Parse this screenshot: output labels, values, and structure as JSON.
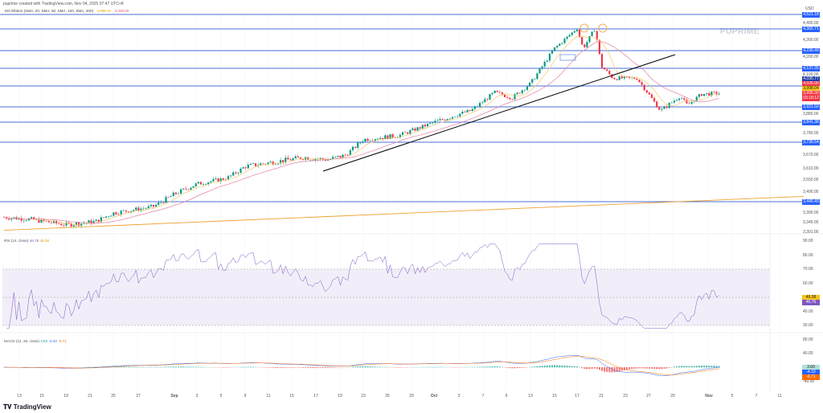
{
  "header": {
    "credit": "puprime created with TradingView.com, Nov 04, 2025 07:47 UTC+8",
    "indicator": "MA Ribbon (SMA, 20, SMA, 50, SMA, 100, SMA, 200)",
    "ma_val1": "3,998.04",
    "ma_val2": "4,026.00"
  },
  "currency": "USD",
  "logo": "PUPRIME",
  "footer": "TradingView",
  "rsi": {
    "label": "RSI (14, close)",
    "v1": "46.76",
    "v2": "49.38"
  },
  "macd": {
    "label": "MACD (12, 26, close)",
    "v1": "3.60",
    "v2": "-4.10",
    "v3": "-6.71"
  },
  "price_axis": [
    "4,400.00",
    "4,300.00",
    "4,200.00",
    "4,100.00",
    "3,880.00",
    "3,780.00",
    "3,670.00",
    "3,610.00",
    "3,550.00",
    "3,490.00",
    "3,390.00",
    "3,345.00",
    "3,301.00"
  ],
  "levels": [
    "4,521.18",
    "4,365.71",
    "4,236.49",
    "4,137.35",
    "4,035.77",
    "3,921.50",
    "3,841.38",
    "3,736.54",
    "3,445.49"
  ],
  "price_tags": {
    "ma100": "4,026.00",
    "ma20": "3,998.04",
    "last": "3,995.30",
    "countdown": "03:18:12"
  },
  "rsi_axis": [
    "90.00",
    "80.00",
    "70.00",
    "60.00",
    "40.00",
    "30.00"
  ],
  "macd_axis": [
    "80.00",
    "40.00",
    "-40.00"
  ],
  "colors": {
    "up": "#089981",
    "down": "#f23645",
    "level": "#2962ff",
    "ma20": "#f5c96b",
    "ma50": "#e57ea0",
    "ma200": "#f0a030",
    "rsi": "#7e57c2",
    "trend": "#000000"
  },
  "chart_data": {
    "type": "candlestick",
    "x_ticks": [
      {
        "label": "13",
        "date": "2025-08-13"
      },
      {
        "label": "15",
        "date": "2025-08-15"
      },
      {
        "label": "19",
        "date": "2025-08-19"
      },
      {
        "label": "21",
        "date": "2025-08-21"
      },
      {
        "label": "25",
        "date": "2025-08-25"
      },
      {
        "label": "27",
        "date": "2025-08-27"
      },
      {
        "label": "Sep",
        "date": "2025-09-01"
      },
      {
        "label": "3",
        "date": "2025-09-03"
      },
      {
        "label": "5",
        "date": "2025-09-05"
      },
      {
        "label": "9",
        "date": "2025-09-09"
      },
      {
        "label": "11",
        "date": "2025-09-11"
      },
      {
        "label": "15",
        "date": "2025-09-15"
      },
      {
        "label": "17",
        "date": "2025-09-17"
      },
      {
        "label": "19",
        "date": "2025-09-19"
      },
      {
        "label": "23",
        "date": "2025-09-23"
      },
      {
        "label": "25",
        "date": "2025-09-25"
      },
      {
        "label": "29",
        "date": "2025-09-29"
      },
      {
        "label": "Oct",
        "date": "2025-10-01"
      },
      {
        "label": "3",
        "date": "2025-10-03"
      },
      {
        "label": "7",
        "date": "2025-10-07"
      },
      {
        "label": "9",
        "date": "2025-10-09"
      },
      {
        "label": "13",
        "date": "2025-10-13"
      },
      {
        "label": "15",
        "date": "2025-10-15"
      },
      {
        "label": "17",
        "date": "2025-10-17"
      },
      {
        "label": "21",
        "date": "2025-10-21"
      },
      {
        "label": "23",
        "date": "2025-10-23"
      },
      {
        "label": "27",
        "date": "2025-10-27"
      },
      {
        "label": "29",
        "date": "2025-10-29"
      },
      {
        "label": "Nov",
        "date": "2025-11-03"
      },
      {
        "label": "5",
        "date": "2025-11-05"
      },
      {
        "label": "7",
        "date": "2025-11-07"
      },
      {
        "label": "11",
        "date": "2025-11-11"
      }
    ],
    "close_path": [
      [
        "2025-08-11",
        3370
      ],
      [
        "2025-08-14",
        3360
      ],
      [
        "2025-08-19",
        3335
      ],
      [
        "2025-08-22",
        3350
      ],
      [
        "2025-08-25",
        3390
      ],
      [
        "2025-08-29",
        3420
      ],
      [
        "2025-09-01",
        3480
      ],
      [
        "2025-09-03",
        3530
      ],
      [
        "2025-09-06",
        3560
      ],
      [
        "2025-09-09",
        3620
      ],
      [
        "2025-09-12",
        3640
      ],
      [
        "2025-09-16",
        3660
      ],
      [
        "2025-09-18",
        3650
      ],
      [
        "2025-09-20",
        3670
      ],
      [
        "2025-09-23",
        3750
      ],
      [
        "2025-09-27",
        3770
      ],
      [
        "2025-10-01",
        3840
      ],
      [
        "2025-10-05",
        3900
      ],
      [
        "2025-10-08",
        4000
      ],
      [
        "2025-10-10",
        3970
      ],
      [
        "2025-10-13",
        4050
      ],
      [
        "2025-10-15",
        4250
      ],
      [
        "2025-10-17",
        4370
      ],
      [
        "2025-10-18",
        4250
      ],
      [
        "2025-10-20",
        4370
      ],
      [
        "2025-10-21",
        4150
      ],
      [
        "2025-10-22",
        4080
      ],
      [
        "2025-10-25",
        4080
      ],
      [
        "2025-10-27",
        3990
      ],
      [
        "2025-10-28",
        3900
      ],
      [
        "2025-10-30",
        3980
      ],
      [
        "2025-10-31",
        3930
      ],
      [
        "2025-11-02",
        3990
      ],
      [
        "2025-11-04",
        3995
      ]
    ],
    "horizontal_levels": [
      4521.18,
      4365.71,
      4236.49,
      4137.35,
      4035.77,
      3921.5,
      3841.38,
      3736.54,
      3445.49
    ],
    "trendline": [
      [
        "2025-09-16",
        3600
      ],
      [
        "2025-10-29",
        4200
      ]
    ],
    "long_ma_line": [
      [
        "2025-08-11",
        3310
      ],
      [
        "2025-11-11",
        3470
      ]
    ],
    "rsi_range": [
      30,
      90
    ],
    "rsi_band": [
      30,
      70
    ],
    "macd_range": [
      -40,
      80
    ]
  }
}
